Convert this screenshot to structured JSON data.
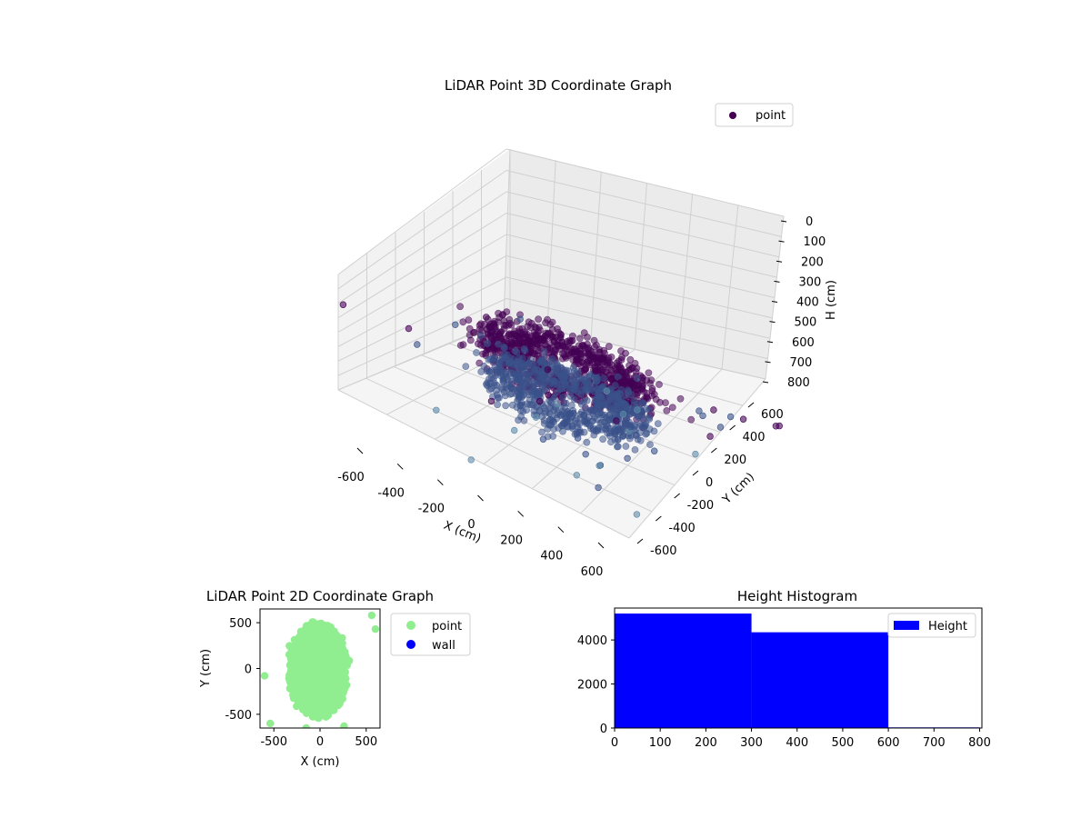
{
  "chart_data": [
    {
      "type": "scatter3d",
      "title": "LiDAR Point 3D Coordinate Graph",
      "xlabel": "X (cm)",
      "ylabel": "Y (cm)",
      "zlabel": "H (cm)",
      "xticks": [
        -600,
        -400,
        -200,
        0,
        200,
        400,
        600
      ],
      "yticks": [
        -600,
        -400,
        -200,
        0,
        200,
        400,
        600
      ],
      "zticks": [
        0,
        100,
        200,
        300,
        400,
        500,
        600,
        700,
        800
      ],
      "zlim": [
        800,
        0
      ],
      "legend": {
        "entries": [
          "point"
        ],
        "placement": "upper-right"
      },
      "colormap": "viridis",
      "colors": {
        "marker_dark": "#440154",
        "marker_mid": "#3b528b",
        "marker_light": "#5e8aa8"
      },
      "grid": true,
      "point_count_visible": "dense",
      "clusters": [
        {
          "description": "upper dense ring",
          "h_range": [
            100,
            300
          ]
        },
        {
          "description": "lower dense ring",
          "h_range": [
            400,
            600
          ]
        }
      ]
    },
    {
      "type": "scatter",
      "title": "LiDAR Point 2D Coordinate Graph",
      "xlabel": "X (cm)",
      "ylabel": "Y (cm)",
      "xticks": [
        -500,
        0,
        500
      ],
      "yticks": [
        -500,
        0,
        500
      ],
      "xlim": [
        -650,
        650
      ],
      "ylim": [
        -650,
        650
      ],
      "series": [
        {
          "name": "point",
          "color": "#90ee90"
        },
        {
          "name": "wall",
          "color": "#0000ff"
        }
      ],
      "legend": {
        "placement": "outside-right"
      }
    },
    {
      "type": "histogram",
      "title": "Height Histogram",
      "bins": [
        {
          "start": 0,
          "end": 300,
          "count": 5200
        },
        {
          "start": 300,
          "end": 600,
          "count": 4350
        },
        {
          "start": 600,
          "end": 800,
          "count": 30
        }
      ],
      "xticks": [
        0,
        100,
        200,
        300,
        400,
        500,
        600,
        700,
        800
      ],
      "yticks": [
        0,
        2000,
        4000
      ],
      "xlim": [
        0,
        805
      ],
      "ylim": [
        0,
        5450
      ],
      "series": [
        {
          "name": "Height",
          "color": "#0000ff"
        }
      ],
      "legend": {
        "placement": "upper-right"
      }
    }
  ]
}
